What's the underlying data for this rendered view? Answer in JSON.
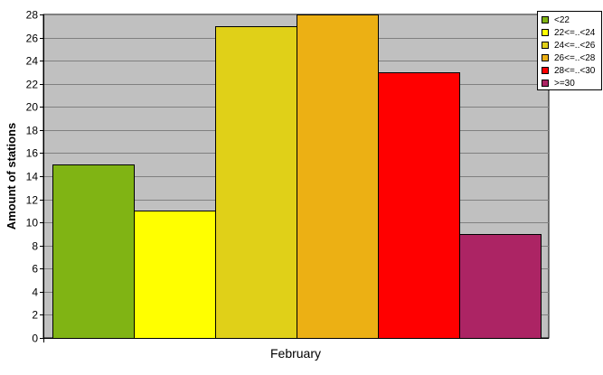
{
  "chart_data": {
    "type": "bar",
    "categories": [
      "February"
    ],
    "ylabel": "Amount of stations",
    "xlabel": "",
    "ylim": [
      0,
      28
    ],
    "ytick_step": 2,
    "grid": true,
    "legend_position": "top-right",
    "plot_background": "#c0c0c0",
    "series": [
      {
        "name": "<22",
        "values": [
          15
        ],
        "color": "#80b414"
      },
      {
        "name": "22<=..<24",
        "values": [
          11
        ],
        "color": "#ffff00"
      },
      {
        "name": "24<=..<26",
        "values": [
          27
        ],
        "color": "#e0d018"
      },
      {
        "name": "26<=..<28",
        "values": [
          28
        ],
        "color": "#ecb014"
      },
      {
        "name": "28<=..<30",
        "values": [
          23
        ],
        "color": "#ff0000"
      },
      {
        "name": ">=30",
        "values": [
          9
        ],
        "color": "#ac2464"
      }
    ]
  }
}
